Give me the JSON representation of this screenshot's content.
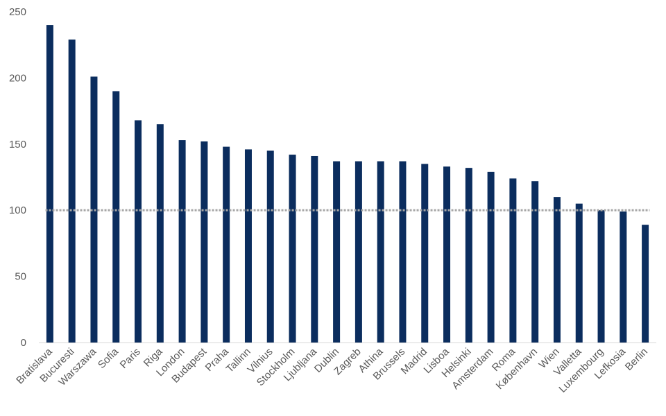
{
  "chart_data": {
    "type": "bar",
    "categories": [
      "Bratislava",
      "Bucuresti",
      "Warszawa",
      "Sofia",
      "Paris",
      "Riga",
      "London",
      "Budapest",
      "Praha",
      "Tallinn",
      "Vilnius",
      "Stockholm",
      "Ljubljana",
      "Dublin",
      "Zagreb",
      "Athina",
      "Brussels",
      "Madrid",
      "Lisboa",
      "Helsinki",
      "Amsterdam",
      "Roma",
      "København",
      "Wien",
      "Valletta",
      "Luxembourg",
      "Lefkosia",
      "Berlin"
    ],
    "values": [
      240,
      229,
      201,
      190,
      168,
      165,
      153,
      152,
      148,
      146,
      145,
      142,
      141,
      137,
      137,
      137,
      137,
      135,
      133,
      132,
      129,
      124,
      122,
      110,
      105,
      100,
      99,
      89
    ],
    "title": "",
    "xlabel": "",
    "ylabel": "",
    "ylim": [
      0,
      250
    ],
    "yticks": [
      0,
      50,
      100,
      150,
      200,
      250
    ],
    "reference_line": 100,
    "grid": false,
    "legend": "none",
    "colors": {
      "bar": "#0b2d5e",
      "reference": "#a6a6a6",
      "axis": "#d9d9d9"
    }
  }
}
